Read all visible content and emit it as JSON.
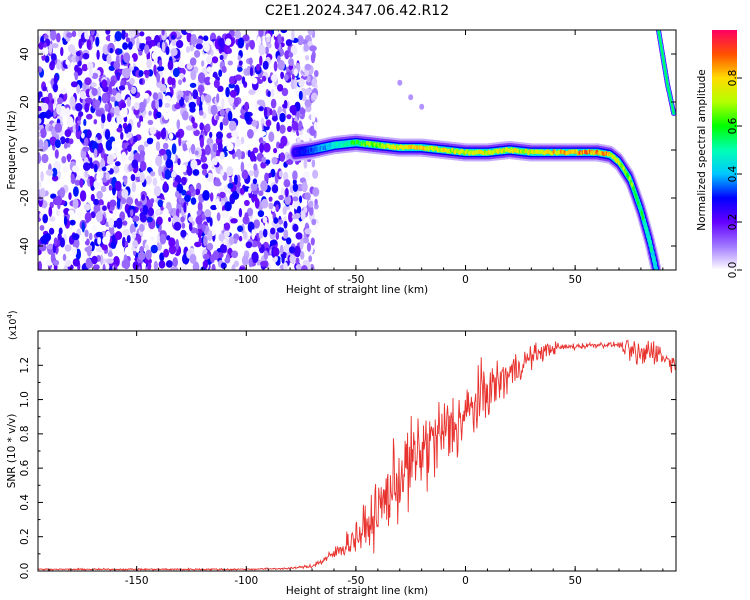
{
  "title": "C2E1.2024.347.06.42.R12",
  "chart_data": [
    {
      "type": "heatmap",
      "xlabel": "Height of straight line (km)",
      "ylabel": "Frequency (Hz)",
      "xlim": [
        -195,
        96
      ],
      "ylim": [
        -50,
        50
      ],
      "xticks": [
        -150,
        -100,
        -50,
        0,
        50
      ],
      "yticks": [
        -40,
        -20,
        0,
        20,
        40
      ],
      "colorbar": {
        "label": "Normalized spectral amplitude",
        "range": [
          0,
          1
        ],
        "ticks": [
          "0.0",
          "0.2",
          "0.4",
          "0.6",
          "0.8"
        ]
      },
      "noise_region_x": [
        -195,
        -72
      ],
      "ridge": [
        {
          "x": -78,
          "y": -1,
          "amp": 0.25
        },
        {
          "x": -70,
          "y": 0,
          "amp": 0.35
        },
        {
          "x": -60,
          "y": 2,
          "amp": 0.45
        },
        {
          "x": -50,
          "y": 3,
          "amp": 0.6
        },
        {
          "x": -40,
          "y": 2,
          "amp": 0.7
        },
        {
          "x": -30,
          "y": 1,
          "amp": 0.75
        },
        {
          "x": -20,
          "y": 1,
          "amp": 0.8
        },
        {
          "x": -10,
          "y": 0,
          "amp": 0.75
        },
        {
          "x": 0,
          "y": -1,
          "amp": 0.75
        },
        {
          "x": 10,
          "y": -1,
          "amp": 0.75
        },
        {
          "x": 20,
          "y": 0,
          "amp": 0.75
        },
        {
          "x": 30,
          "y": -1,
          "amp": 0.75
        },
        {
          "x": 40,
          "y": -1,
          "amp": 0.8
        },
        {
          "x": 50,
          "y": -1,
          "amp": 0.85
        },
        {
          "x": 60,
          "y": -1,
          "amp": 0.9
        },
        {
          "x": 66,
          "y": -2,
          "amp": 0.8
        },
        {
          "x": 70,
          "y": -5,
          "amp": 0.75
        },
        {
          "x": 75,
          "y": -12,
          "amp": 0.7
        },
        {
          "x": 80,
          "y": -25,
          "amp": 0.6
        },
        {
          "x": 84,
          "y": -38,
          "amp": 0.5
        },
        {
          "x": 87,
          "y": -50,
          "amp": 0.45
        }
      ],
      "upper_branch": [
        {
          "x": 88,
          "y": 50
        },
        {
          "x": 92,
          "y": 28
        },
        {
          "x": 95,
          "y": 15
        }
      ],
      "faint_streak": [
        {
          "x": -30,
          "y": 28
        },
        {
          "x": -25,
          "y": 22
        },
        {
          "x": -20,
          "y": 18
        }
      ]
    },
    {
      "type": "line",
      "xlabel": "Height of straight line (km)",
      "ylabel": "SNR (10 * v/v)",
      "multiplier": "(x10",
      "multiplier_exp": "4",
      "xlim": [
        -195,
        96
      ],
      "ylim": [
        0,
        1.4
      ],
      "xticks": [
        -150,
        -100,
        -50,
        0,
        50
      ],
      "yticks": [
        "0.0",
        "0.2",
        "0.4",
        "0.6",
        "0.8",
        "1.0",
        "1.2"
      ],
      "line_color": "#e8322e",
      "series": [
        {
          "x": [
            -195,
            -100,
            -80,
            -70,
            -65,
            -60,
            -55,
            -50,
            -45,
            -40,
            -35,
            -30,
            -25,
            -20,
            -15,
            -10,
            -5,
            0,
            5,
            10,
            15,
            20,
            25,
            30,
            35,
            40,
            50,
            60,
            70,
            75,
            80,
            85,
            90,
            96
          ],
          "values": [
            0.01,
            0.01,
            0.015,
            0.03,
            0.06,
            0.1,
            0.15,
            0.2,
            0.25,
            0.35,
            0.45,
            0.55,
            0.62,
            0.7,
            0.75,
            0.8,
            0.85,
            0.9,
            0.98,
            1.05,
            1.1,
            1.15,
            1.2,
            1.25,
            1.28,
            1.3,
            1.31,
            1.32,
            1.32,
            1.28,
            1.25,
            1.3,
            1.25,
            1.2
          ]
        }
      ],
      "noise_amp": [
        {
          "x": -195,
          "a": 0.005
        },
        {
          "x": -75,
          "a": 0.008
        },
        {
          "x": -60,
          "a": 0.05
        },
        {
          "x": -45,
          "a": 0.2
        },
        {
          "x": -30,
          "a": 0.35
        },
        {
          "x": -15,
          "a": 0.35
        },
        {
          "x": 0,
          "a": 0.3
        },
        {
          "x": 15,
          "a": 0.2
        },
        {
          "x": 30,
          "a": 0.1
        },
        {
          "x": 45,
          "a": 0.03
        },
        {
          "x": 70,
          "a": 0.02
        },
        {
          "x": 78,
          "a": 0.15
        },
        {
          "x": 96,
          "a": 0.06
        }
      ]
    }
  ]
}
